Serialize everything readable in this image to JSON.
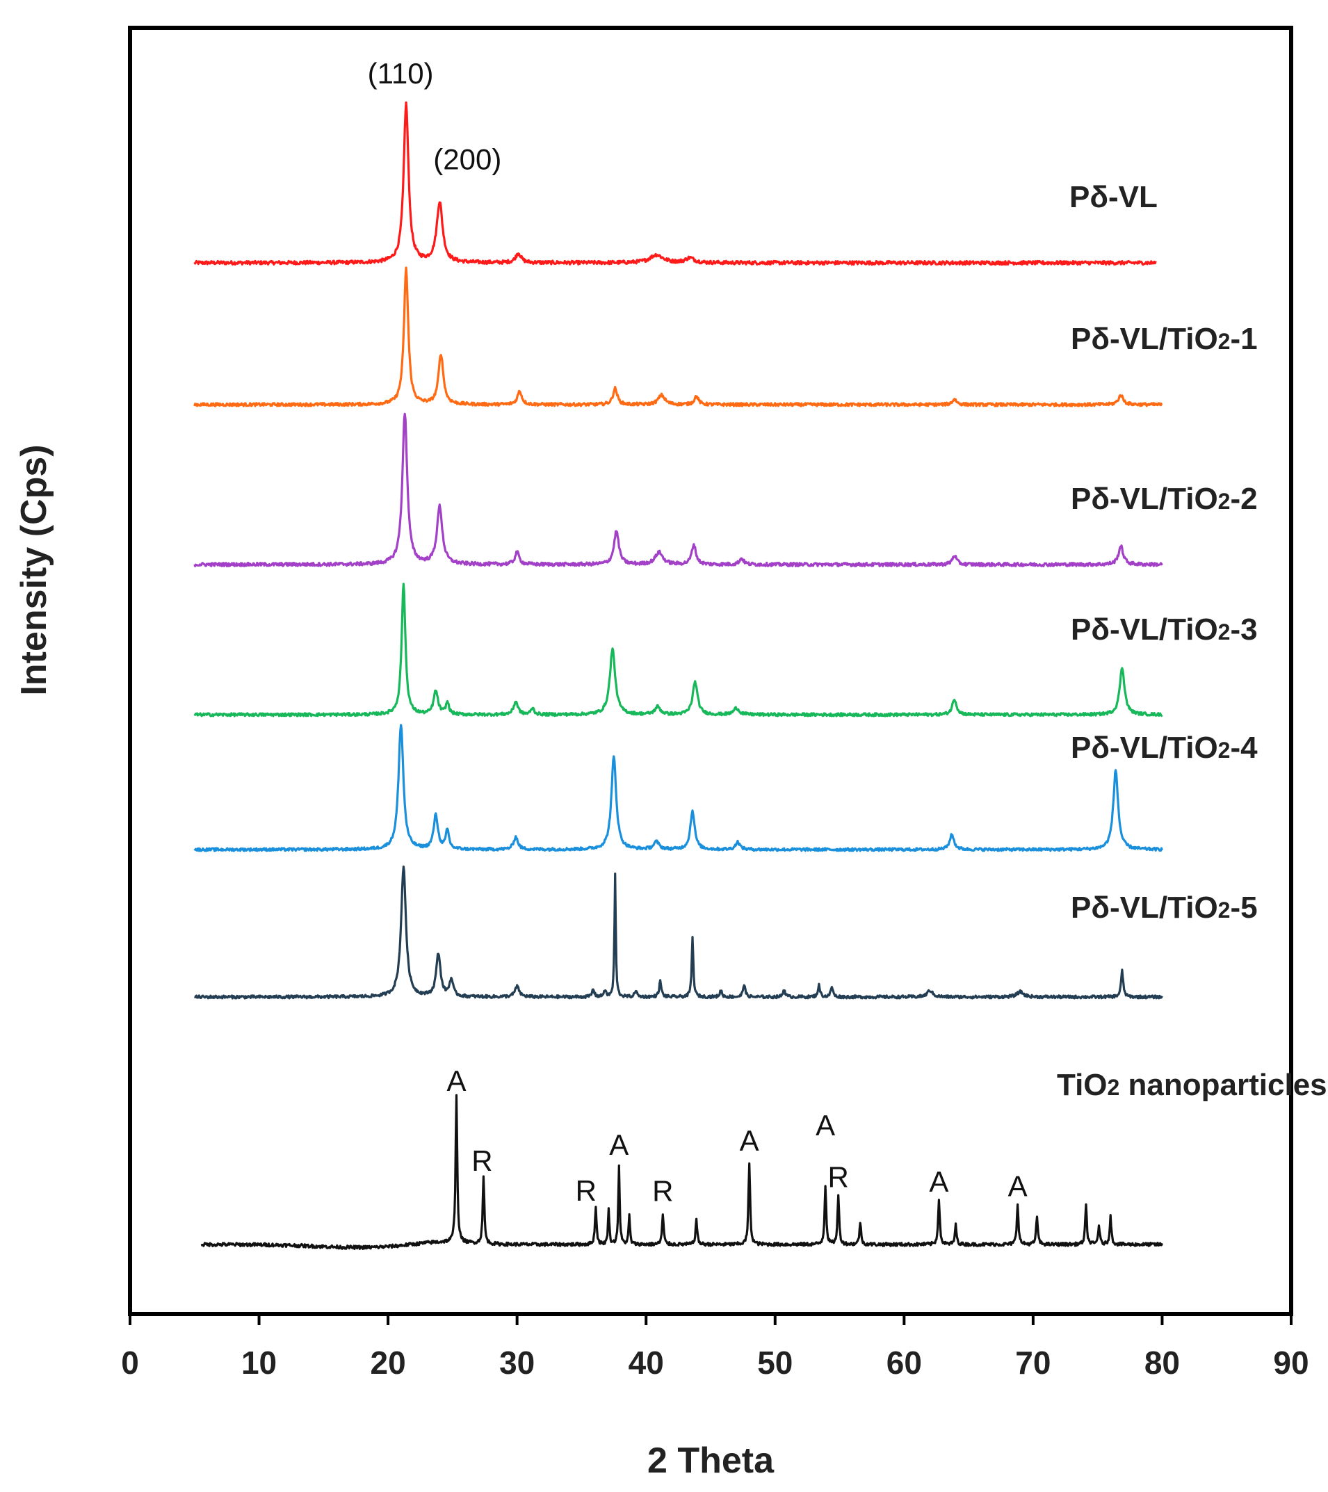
{
  "chart_data": {
    "type": "line",
    "title": "",
    "xlabel": "2 Theta",
    "ylabel": "Intensity (Cps)",
    "xlim": [
      0,
      90
    ],
    "xticks": [
      "0",
      "10",
      "20",
      "30",
      "40",
      "50",
      "60",
      "70",
      "80",
      "90"
    ],
    "grid": false,
    "series": [
      {
        "name": "Pδ-VL",
        "label_main": "Pδ-VL",
        "label_sub": "",
        "label_tail": "",
        "color": "#ff1a1a",
        "x_range": [
          5,
          79.5
        ],
        "peaks": [
          {
            "x": 21.4,
            "height": 1.0,
            "width": 0.45
          },
          {
            "x": 24.0,
            "height": 0.38,
            "width": 0.55
          },
          {
            "x": 30.1,
            "height": 0.06,
            "width": 0.5
          },
          {
            "x": 40.8,
            "height": 0.05,
            "width": 1.2
          },
          {
            "x": 43.4,
            "height": 0.03,
            "width": 0.8
          }
        ]
      },
      {
        "name": "Pδ-VL/TiO2-1",
        "label_main": "Pδ-VL/TiO",
        "label_sub": "2",
        "label_tail": "-1",
        "color": "#ff6a13",
        "x_range": [
          5,
          80
        ],
        "peaks": [
          {
            "x": 21.4,
            "height": 1.0,
            "width": 0.4
          },
          {
            "x": 24.1,
            "height": 0.37,
            "width": 0.45
          },
          {
            "x": 30.2,
            "height": 0.1,
            "width": 0.4
          },
          {
            "x": 37.6,
            "height": 0.12,
            "width": 0.4
          },
          {
            "x": 41.2,
            "height": 0.07,
            "width": 0.6
          },
          {
            "x": 43.9,
            "height": 0.06,
            "width": 0.4
          },
          {
            "x": 63.9,
            "height": 0.04,
            "width": 0.4
          },
          {
            "x": 76.8,
            "height": 0.07,
            "width": 0.45
          }
        ]
      },
      {
        "name": "Pδ-VL/TiO2-2",
        "label_main": "Pδ-VL/TiO",
        "label_sub": "2",
        "label_tail": "-2",
        "color": "#a340c8",
        "x_range": [
          5,
          80
        ],
        "peaks": [
          {
            "x": 21.3,
            "height": 1.0,
            "width": 0.45
          },
          {
            "x": 24.0,
            "height": 0.38,
            "width": 0.5
          },
          {
            "x": 30.0,
            "height": 0.08,
            "width": 0.4
          },
          {
            "x": 37.7,
            "height": 0.22,
            "width": 0.45
          },
          {
            "x": 41.0,
            "height": 0.08,
            "width": 0.7
          },
          {
            "x": 43.7,
            "height": 0.13,
            "width": 0.4
          },
          {
            "x": 47.4,
            "height": 0.04,
            "width": 0.4
          },
          {
            "x": 63.9,
            "height": 0.06,
            "width": 0.4
          },
          {
            "x": 76.8,
            "height": 0.12,
            "width": 0.45
          }
        ]
      },
      {
        "name": "Pδ-VL/TiO2-3",
        "label_main": "Pδ-VL/TiO",
        "label_sub": "2",
        "label_tail": "-3",
        "color": "#17b85a",
        "x_range": [
          5,
          80
        ],
        "peaks": [
          {
            "x": 21.2,
            "height": 1.0,
            "width": 0.35
          },
          {
            "x": 23.7,
            "height": 0.18,
            "width": 0.4
          },
          {
            "x": 24.6,
            "height": 0.09,
            "width": 0.3
          },
          {
            "x": 29.9,
            "height": 0.1,
            "width": 0.4
          },
          {
            "x": 31.2,
            "height": 0.05,
            "width": 0.3
          },
          {
            "x": 37.4,
            "height": 0.5,
            "width": 0.5
          },
          {
            "x": 40.9,
            "height": 0.06,
            "width": 0.5
          },
          {
            "x": 43.8,
            "height": 0.25,
            "width": 0.45
          },
          {
            "x": 47.0,
            "height": 0.05,
            "width": 0.5
          },
          {
            "x": 63.9,
            "height": 0.12,
            "width": 0.4
          },
          {
            "x": 76.9,
            "height": 0.36,
            "width": 0.45
          }
        ]
      },
      {
        "name": "Pδ-VL/TiO2-4",
        "label_main": "Pδ-VL/TiO",
        "label_sub": "2",
        "label_tail": "-4",
        "color": "#1a8fdc",
        "x_range": [
          5,
          80
        ],
        "peaks": [
          {
            "x": 21.0,
            "height": 1.0,
            "width": 0.45
          },
          {
            "x": 23.7,
            "height": 0.27,
            "width": 0.4
          },
          {
            "x": 24.6,
            "height": 0.15,
            "width": 0.3
          },
          {
            "x": 29.9,
            "height": 0.1,
            "width": 0.4
          },
          {
            "x": 37.5,
            "height": 0.74,
            "width": 0.45
          },
          {
            "x": 40.8,
            "height": 0.06,
            "width": 0.5
          },
          {
            "x": 43.6,
            "height": 0.31,
            "width": 0.4
          },
          {
            "x": 47.1,
            "height": 0.06,
            "width": 0.4
          },
          {
            "x": 63.7,
            "height": 0.12,
            "width": 0.4
          },
          {
            "x": 76.4,
            "height": 0.63,
            "width": 0.45
          }
        ]
      },
      {
        "name": "Pδ-VL/TiO2-5",
        "label_main": "Pδ-VL/TiO",
        "label_sub": "2",
        "label_tail": "-5",
        "color": "#233d52",
        "x_range": [
          5,
          80
        ],
        "peaks": [
          {
            "x": 21.2,
            "height": 1.0,
            "width": 0.45
          },
          {
            "x": 23.9,
            "height": 0.33,
            "width": 0.4
          },
          {
            "x": 24.9,
            "height": 0.13,
            "width": 0.35
          },
          {
            "x": 30.0,
            "height": 0.08,
            "width": 0.4
          },
          {
            "x": 35.9,
            "height": 0.06,
            "width": 0.2
          },
          {
            "x": 36.8,
            "height": 0.05,
            "width": 0.2
          },
          {
            "x": 37.6,
            "height": 0.95,
            "width": 0.12
          },
          {
            "x": 39.2,
            "height": 0.05,
            "width": 0.2
          },
          {
            "x": 41.1,
            "height": 0.12,
            "width": 0.2
          },
          {
            "x": 43.6,
            "height": 0.46,
            "width": 0.15
          },
          {
            "x": 45.8,
            "height": 0.05,
            "width": 0.2
          },
          {
            "x": 47.6,
            "height": 0.1,
            "width": 0.2
          },
          {
            "x": 50.7,
            "height": 0.06,
            "width": 0.2
          },
          {
            "x": 53.4,
            "height": 0.09,
            "width": 0.2
          },
          {
            "x": 54.4,
            "height": 0.08,
            "width": 0.2
          },
          {
            "x": 62.0,
            "height": 0.05,
            "width": 0.5
          },
          {
            "x": 69.0,
            "height": 0.04,
            "width": 0.6
          },
          {
            "x": 76.9,
            "height": 0.2,
            "width": 0.2
          }
        ]
      },
      {
        "name": "TiO2 nanoparticles",
        "label_main": "TiO",
        "label_sub": "2",
        "label_tail": " nanoparticles",
        "color": "#111111",
        "x_range": [
          5.5,
          80
        ],
        "peaks": [
          {
            "x": 25.3,
            "height": 1.0,
            "width": 0.15
          },
          {
            "x": 27.4,
            "height": 0.45,
            "width": 0.15
          },
          {
            "x": 36.1,
            "height": 0.25,
            "width": 0.15
          },
          {
            "x": 37.1,
            "height": 0.25,
            "width": 0.12
          },
          {
            "x": 37.9,
            "height": 0.52,
            "width": 0.13
          },
          {
            "x": 38.7,
            "height": 0.2,
            "width": 0.12
          },
          {
            "x": 41.3,
            "height": 0.2,
            "width": 0.15
          },
          {
            "x": 43.9,
            "height": 0.17,
            "width": 0.15
          },
          {
            "x": 48.0,
            "height": 0.55,
            "width": 0.15
          },
          {
            "x": 53.9,
            "height": 0.4,
            "width": 0.15
          },
          {
            "x": 54.9,
            "height": 0.33,
            "width": 0.15
          },
          {
            "x": 56.6,
            "height": 0.15,
            "width": 0.15
          },
          {
            "x": 62.7,
            "height": 0.31,
            "width": 0.15
          },
          {
            "x": 64.0,
            "height": 0.13,
            "width": 0.15
          },
          {
            "x": 68.8,
            "height": 0.28,
            "width": 0.15
          },
          {
            "x": 70.3,
            "height": 0.19,
            "width": 0.15
          },
          {
            "x": 74.1,
            "height": 0.26,
            "width": 0.15
          },
          {
            "x": 75.1,
            "height": 0.13,
            "width": 0.15
          },
          {
            "x": 76.0,
            "height": 0.19,
            "width": 0.15
          }
        ]
      }
    ],
    "annotations": [
      {
        "text": "(110)",
        "x": 21.4,
        "series": "Pδ-VL"
      },
      {
        "text": "(200)",
        "x": 24.0,
        "series": "Pδ-VL"
      },
      {
        "text": "A",
        "x": 25.3,
        "series": "TiO2 nanoparticles"
      },
      {
        "text": "R",
        "x": 27.4,
        "series": "TiO2 nanoparticles"
      },
      {
        "text": "R",
        "x": 36.1,
        "series": "TiO2 nanoparticles"
      },
      {
        "text": "A",
        "x": 37.9,
        "series": "TiO2 nanoparticles"
      },
      {
        "text": "R",
        "x": 41.3,
        "series": "TiO2 nanoparticles"
      },
      {
        "text": "A",
        "x": 48.0,
        "series": "TiO2 nanoparticles"
      },
      {
        "text": "A",
        "x": 53.9,
        "series": "TiO2 nanoparticles"
      },
      {
        "text": "R",
        "x": 54.9,
        "series": "TiO2 nanoparticles"
      },
      {
        "text": "A",
        "x": 62.7,
        "series": "TiO2 nanoparticles"
      },
      {
        "text": "A",
        "x": 68.8,
        "series": "TiO2 nanoparticles"
      }
    ]
  }
}
